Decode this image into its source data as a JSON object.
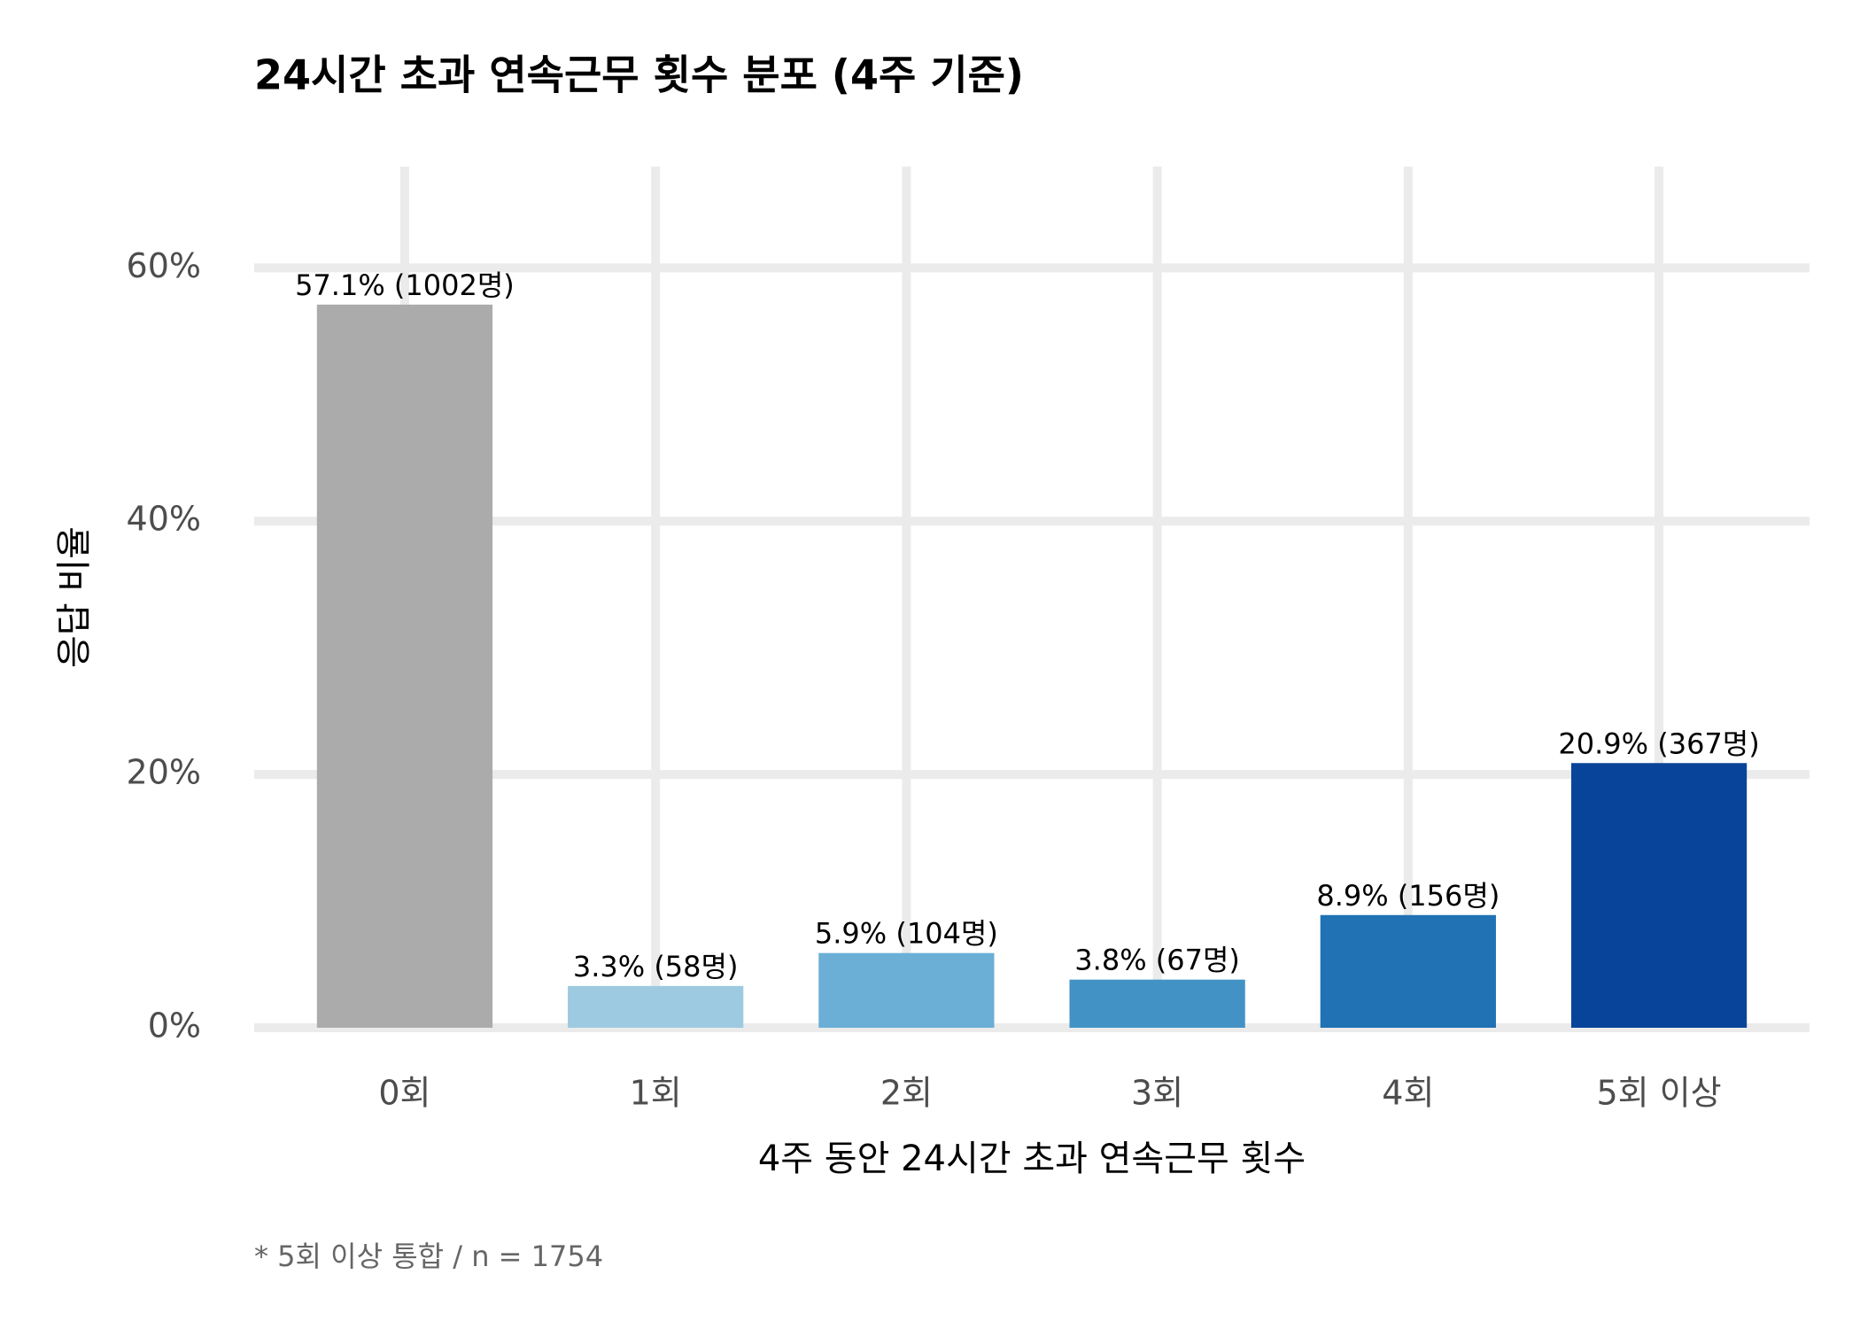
{
  "chart_data": {
    "type": "bar",
    "title": "24시간 초과 연속근무 횟수 분포 (4주 기준)",
    "x_label": "4주 동안 24시간 초과 연속근무 횟수",
    "y_label": "응답 비율",
    "caption": "* 5회 이상 통합 / n = 1754",
    "categories": [
      "0회",
      "1회",
      "2회",
      "3회",
      "4회",
      "5회 이상"
    ],
    "values": [
      57.1,
      3.3,
      5.9,
      3.8,
      8.9,
      20.9
    ],
    "value_labels": [
      "57.1% (1002명)",
      "3.3% (58명)",
      "5.9% (104명)",
      "3.8% (67명)",
      "8.9% (156명)",
      "20.9% (367명)"
    ],
    "colors": [
      "#ababab",
      "#9ecae1",
      "#6baed6",
      "#4292c6",
      "#2171b5",
      "#08459a"
    ],
    "ylim": [
      0,
      68
    ],
    "yticks": [
      {
        "value": 0,
        "label": "0%"
      },
      {
        "value": 20,
        "label": "20%"
      },
      {
        "value": 40,
        "label": "40%"
      },
      {
        "value": 60,
        "label": "60%"
      }
    ],
    "grid": true
  }
}
